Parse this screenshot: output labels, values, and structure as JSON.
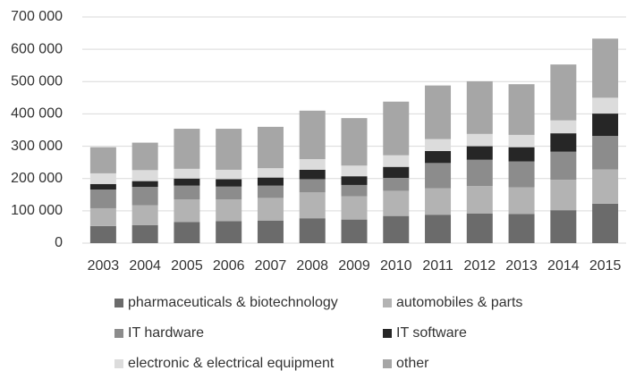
{
  "chart_data": {
    "type": "stacked_bar",
    "categories": [
      "2003",
      "2004",
      "2005",
      "2006",
      "2007",
      "2008",
      "2009",
      "2010",
      "2011",
      "2012",
      "2013",
      "2014",
      "2015"
    ],
    "series": [
      {
        "name": "pharmaceuticals & biotechnology",
        "color": "#6b6b6b",
        "values": [
          53000,
          56000,
          65000,
          68000,
          70000,
          77000,
          73000,
          84000,
          88000,
          92000,
          90000,
          102000,
          122000
        ]
      },
      {
        "name": "automobiles & parts",
        "color": "#b3b3b3",
        "values": [
          55000,
          61000,
          70000,
          67000,
          70000,
          80000,
          72000,
          78000,
          82000,
          85000,
          83000,
          94000,
          106000
        ]
      },
      {
        "name": "IT hardware",
        "color": "#8c8c8c",
        "values": [
          58000,
          57000,
          43000,
          40000,
          38000,
          41000,
          35000,
          40000,
          78000,
          81000,
          80000,
          87000,
          104000
        ]
      },
      {
        "name": "IT software",
        "color": "#262626",
        "values": [
          17000,
          18000,
          22000,
          23000,
          25000,
          29000,
          27000,
          34000,
          37000,
          42000,
          44000,
          57000,
          69000
        ]
      },
      {
        "name": "electronic & electrical equipment",
        "color": "#dcdcdc",
        "values": [
          33000,
          34000,
          30000,
          29000,
          29000,
          33000,
          33000,
          36000,
          37000,
          38000,
          38000,
          40000,
          49000
        ]
      },
      {
        "name": "other",
        "color": "#a6a6a6",
        "values": [
          81000,
          85000,
          124000,
          127000,
          128000,
          150000,
          147000,
          166000,
          166000,
          163000,
          157000,
          173000,
          183000
        ]
      }
    ],
    "ylim": [
      0,
      700000
    ],
    "yticks": [
      0,
      {
        "value": 100000,
        "label": "100 000"
      },
      {
        "value": 200000,
        "label": "200 000"
      },
      {
        "value": 300000,
        "label": "300 000"
      },
      {
        "value": 400000,
        "label": "400 000"
      },
      {
        "value": 500000,
        "label": "500 000"
      },
      {
        "value": 600000,
        "label": "600 000"
      },
      {
        "value": 700000,
        "label": "700 000"
      }
    ],
    "grid": true
  }
}
